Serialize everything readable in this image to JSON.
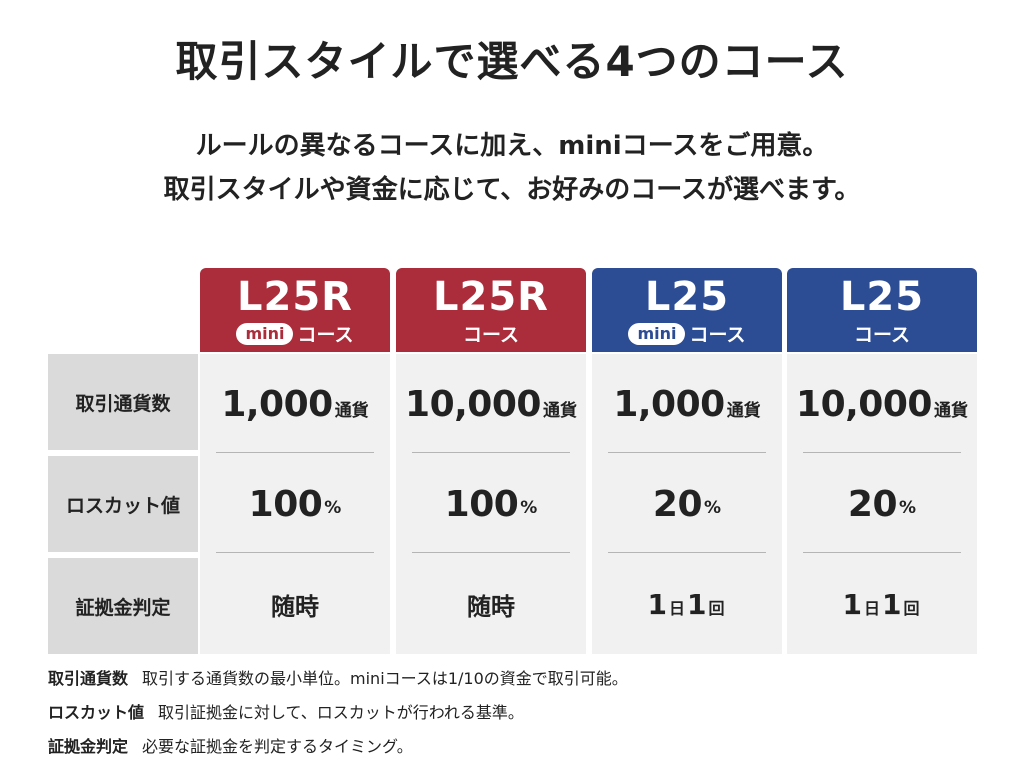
{
  "title": "取引スタイルで選べる4つのコース",
  "lead": {
    "line1": "ルールの異なるコースに加え、miniコースをご用意。",
    "line2": "取引スタイルや資金に応じて、お好みのコースが選べます。"
  },
  "row_labels": [
    "取引通貨数",
    "ロスカット値",
    "証拠金判定"
  ],
  "courses": [
    {
      "name": "L25R",
      "mini_badge": "mini",
      "course_label": "コース",
      "color": "#ab2c3a",
      "currency_amount": "1,000",
      "currency_unit": "通貨",
      "losscut_value": "100",
      "losscut_unit": "%",
      "margin_check": "随時"
    },
    {
      "name": "L25R",
      "mini_badge": "",
      "course_label": "コース",
      "color": "#ab2c3a",
      "currency_amount": "10,000",
      "currency_unit": "通貨",
      "losscut_value": "100",
      "losscut_unit": "%",
      "margin_check": "随時"
    },
    {
      "name": "L25",
      "mini_badge": "mini",
      "course_label": "コース",
      "color": "#2c4c94",
      "currency_amount": "1,000",
      "currency_unit": "通貨",
      "losscut_value": "20",
      "losscut_unit": "%",
      "margin_check_parts": [
        "1",
        "日",
        "1",
        "回"
      ]
    },
    {
      "name": "L25",
      "mini_badge": "",
      "course_label": "コース",
      "color": "#2c4c94",
      "currency_amount": "10,000",
      "currency_unit": "通貨",
      "losscut_value": "20",
      "losscut_unit": "%",
      "margin_check_parts": [
        "1",
        "日",
        "1",
        "回"
      ]
    }
  ],
  "notes": [
    {
      "term": "取引通貨数",
      "desc": "取引する通貨数の最小単位。miniコースは1/10の資金で取引可能。"
    },
    {
      "term": "ロスカット値",
      "desc": "取引証拠金に対して、ロスカットが行われる基準。"
    },
    {
      "term": "証拠金判定",
      "desc": "必要な証拠金を判定するタイミング。"
    }
  ]
}
